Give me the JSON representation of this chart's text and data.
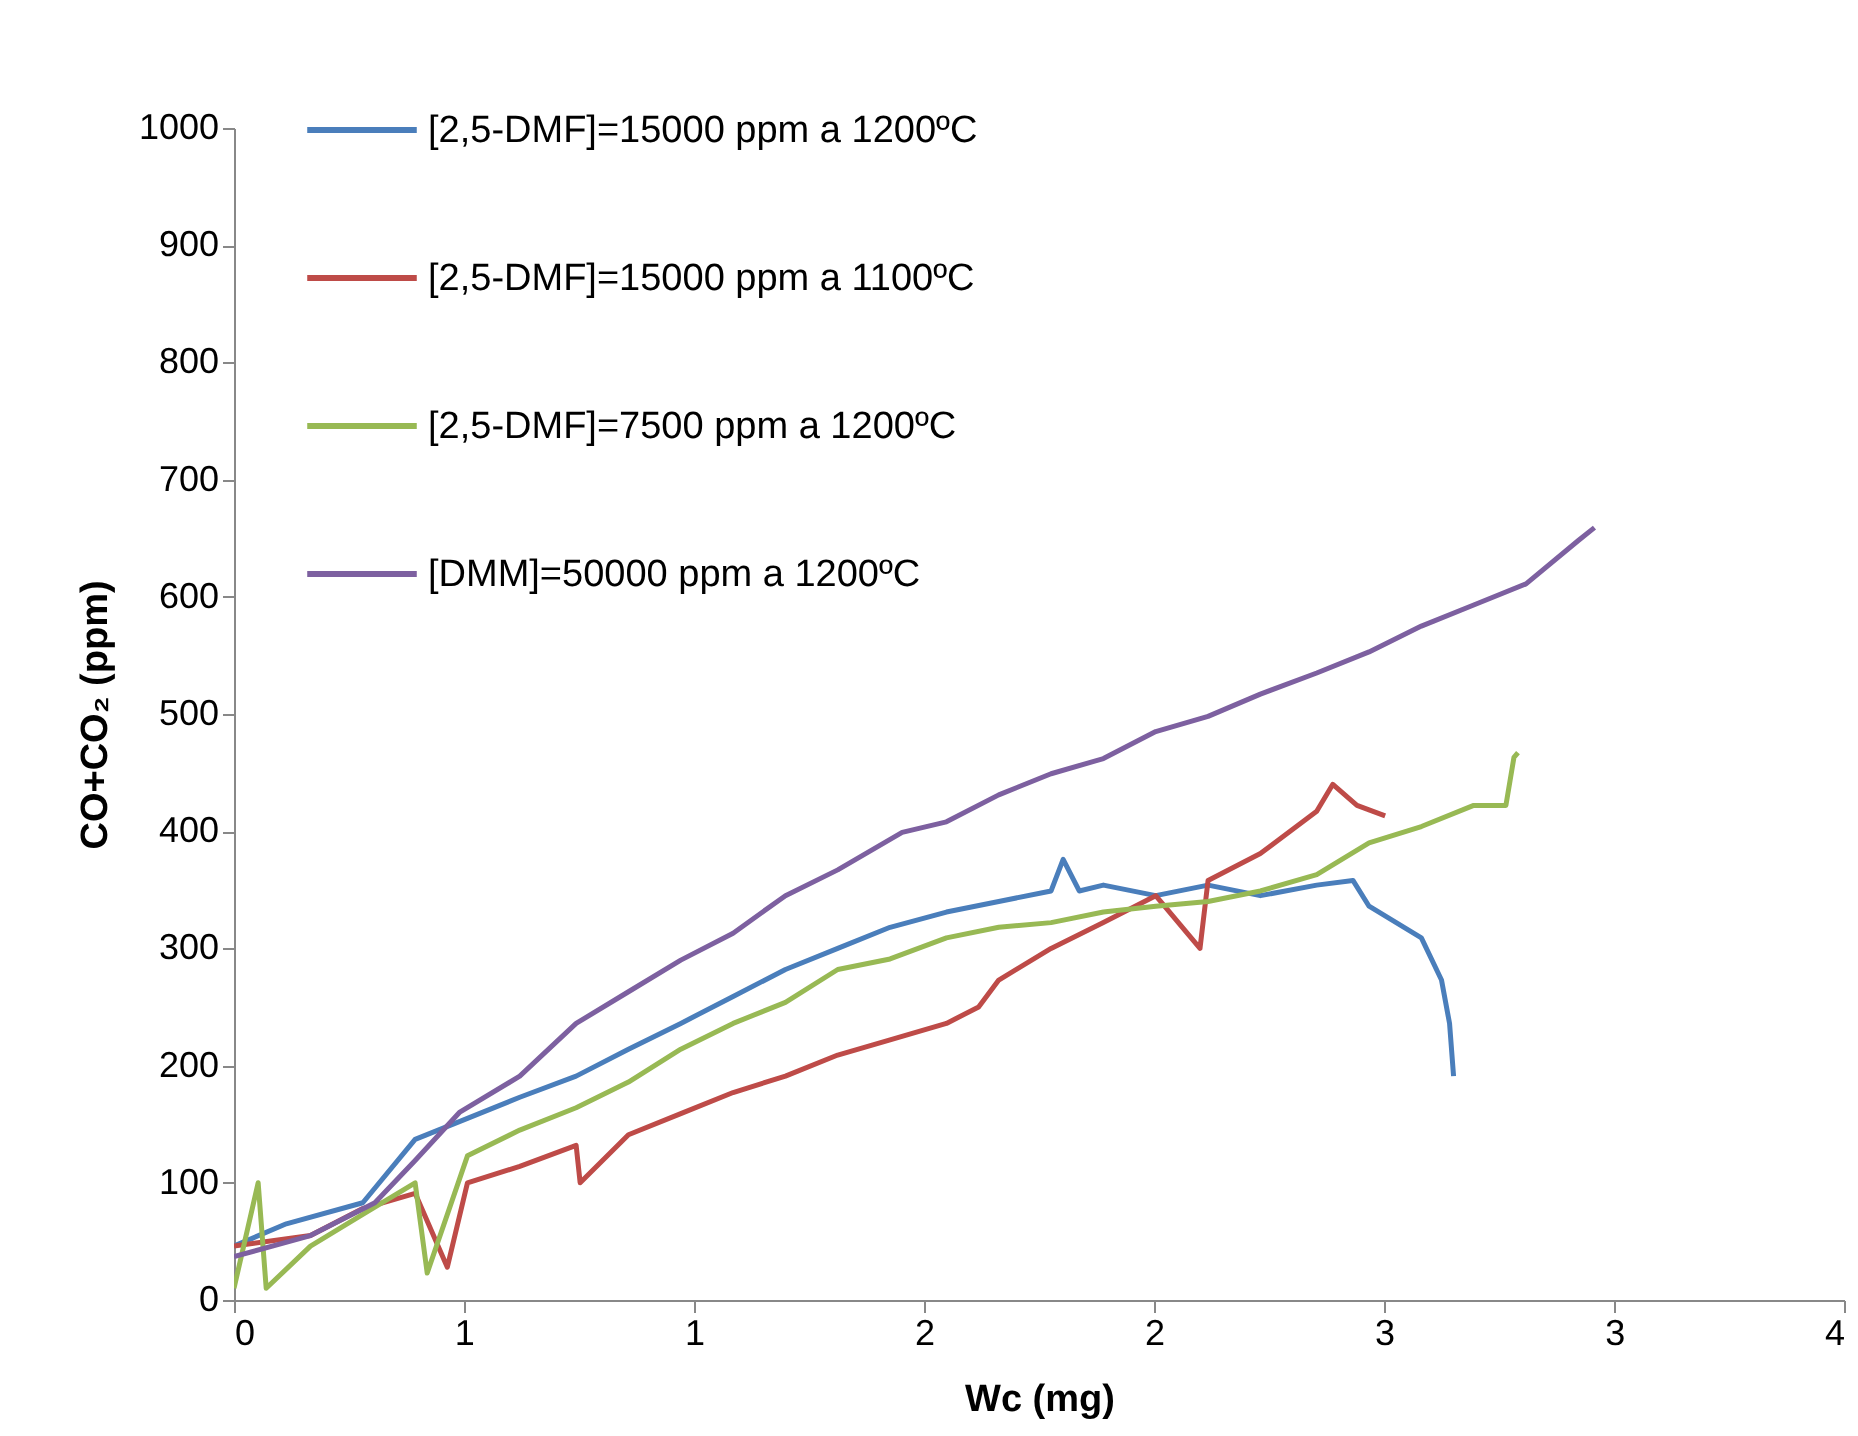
{
  "chart_data": {
    "type": "line",
    "xlabel": "Wc (mg)",
    "ylabel": "CO+CO₂ (ppm)",
    "xlim": [
      0,
      4
    ],
    "xticks": [
      0,
      {
        "value": 0.571,
        "label": "1"
      },
      {
        "value": 1.143,
        "label": "1"
      },
      {
        "value": 1.714,
        "label": "2"
      },
      {
        "value": 2.286,
        "label": "2"
      },
      {
        "value": 2.857,
        "label": "3"
      },
      {
        "value": 3.429,
        "label": "3"
      },
      4
    ],
    "ylim": [
      0,
      1000
    ],
    "yticks": [
      0,
      100,
      200,
      300,
      400,
      500,
      600,
      700,
      800,
      900,
      1000
    ],
    "grid": false,
    "legend": "top left",
    "line_style": "solid",
    "series": [
      {
        "name": "[2,5-DMF]=15000 ppm a 1200ºC",
        "color": "#4a7ebb",
        "x": [
          0,
          0.13,
          0.32,
          0.45,
          0.58,
          0.71,
          0.85,
          0.98,
          1.11,
          1.24,
          1.37,
          1.5,
          1.63,
          1.77,
          1.9,
          2.03,
          2.06,
          2.1,
          2.16,
          2.29,
          2.42,
          2.55,
          2.69,
          2.78,
          2.82,
          2.95,
          3.0,
          3.02,
          3.03
        ],
        "values": [
          46,
          65,
          83,
          137,
          155,
          173,
          191,
          214,
          236,
          259,
          282,
          300,
          318,
          331,
          340,
          349,
          376,
          349,
          354,
          345,
          354,
          345,
          354,
          358,
          336,
          309,
          273,
          236,
          191
        ]
      },
      {
        "name": "[2,5-DMF]=15000 ppm a 1100ºC",
        "color": "#be4b48",
        "x": [
          0,
          0.19,
          0.32,
          0.45,
          0.53,
          0.58,
          0.71,
          0.85,
          0.86,
          0.98,
          1.11,
          1.24,
          1.37,
          1.5,
          1.63,
          1.77,
          1.85,
          1.9,
          2.03,
          2.16,
          2.29,
          2.4,
          2.42,
          2.55,
          2.69,
          2.73,
          2.79,
          2.86
        ],
        "values": [
          46,
          55,
          78,
          91,
          28,
          100,
          114,
          132,
          100,
          141,
          159,
          177,
          191,
          209,
          222,
          236,
          250,
          273,
          300,
          322,
          345,
          300,
          358,
          381,
          417,
          440,
          422,
          413
        ]
      },
      {
        "name": "[2,5-DMF]=7500 ppm a 1200ºC",
        "color": "#98b954",
        "x": [
          0,
          0.06,
          0.08,
          0.19,
          0.32,
          0.45,
          0.48,
          0.58,
          0.71,
          0.85,
          0.98,
          1.11,
          1.24,
          1.37,
          1.5,
          1.63,
          1.77,
          1.9,
          2.03,
          2.16,
          2.29,
          2.42,
          2.55,
          2.69,
          2.82,
          2.95,
          3.08,
          3.16,
          3.18,
          3.19
        ],
        "values": [
          10,
          100,
          10,
          46,
          73,
          100,
          23,
          123,
          145,
          164,
          186,
          214,
          236,
          254,
          282,
          291,
          309,
          318,
          322,
          331,
          336,
          340,
          349,
          363,
          390,
          404,
          422,
          422,
          463,
          467
        ]
      },
      {
        "name": "[DMM]=50000 ppm a 1200ºC",
        "color": "#7d60a0",
        "x": [
          0,
          0.19,
          0.35,
          0.45,
          0.56,
          0.71,
          0.85,
          0.98,
          1.11,
          1.24,
          1.37,
          1.5,
          1.66,
          1.77,
          1.9,
          2.03,
          2.16,
          2.29,
          2.42,
          2.55,
          2.69,
          2.82,
          2.95,
          3.08,
          3.21,
          3.34,
          3.38
        ],
        "values": [
          37,
          55,
          83,
          119,
          160,
          191,
          236,
          263,
          290,
          313,
          345,
          367,
          399,
          408,
          431,
          449,
          462,
          485,
          498,
          517,
          535,
          553,
          575,
          593,
          611,
          648,
          659
        ]
      }
    ]
  }
}
